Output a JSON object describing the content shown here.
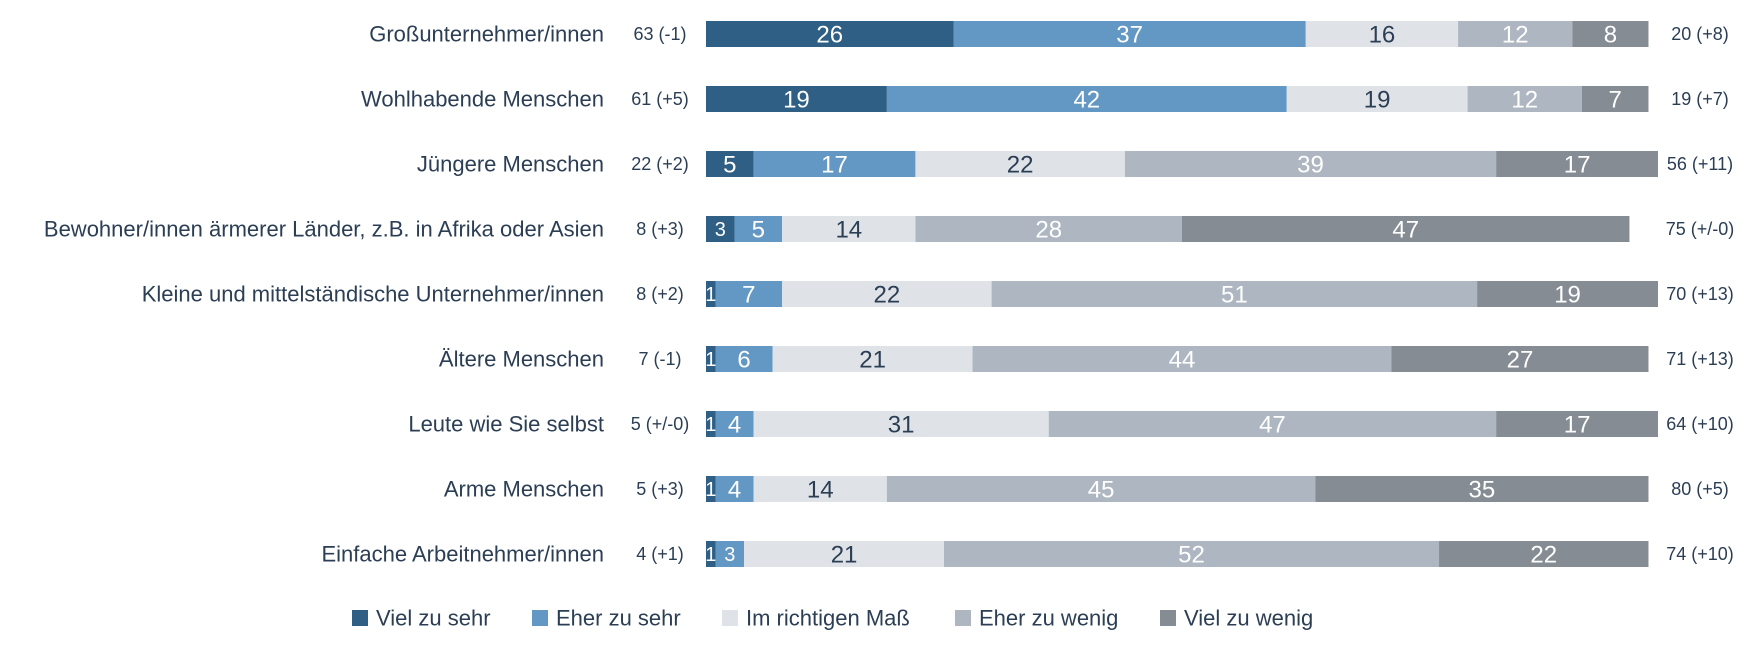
{
  "chart_data": {
    "type": "bar",
    "orientation": "horizontal",
    "stacked": true,
    "categories": [
      "Großunternehmer/innen",
      "Wohlhabende Menschen",
      "Jüngere Menschen",
      "Bewohner/innen ärmerer Länder, z.B. in Afrika oder Asien",
      "Kleine und mittelständische Unternehmer/innen",
      "Ältere Menschen",
      "Leute wie Sie selbst",
      "Arme Menschen",
      "Einfache Arbeitnehmer/innen"
    ],
    "series": [
      {
        "name": "Viel zu sehr",
        "color": "#2f5f85",
        "label_color": "#ffffff",
        "values": [
          26,
          19,
          5,
          3,
          1,
          1,
          1,
          1,
          1
        ]
      },
      {
        "name": "Eher zu sehr",
        "color": "#6398c4",
        "label_color": "#ffffff",
        "values": [
          37,
          42,
          17,
          5,
          7,
          6,
          4,
          4,
          3
        ]
      },
      {
        "name": "Im richtigen Maß",
        "color": "#dfe3e8",
        "label_color": "#2b3e54",
        "values": [
          16,
          19,
          22,
          14,
          22,
          21,
          31,
          14,
          21
        ]
      },
      {
        "name": "Eher zu wenig",
        "color": "#adb6c1",
        "label_color": "#ffffff",
        "values": [
          12,
          12,
          39,
          28,
          51,
          44,
          47,
          45,
          52
        ]
      },
      {
        "name": "Viel zu wenig",
        "color": "#858c94",
        "label_color": "#ffffff",
        "values": [
          8,
          7,
          17,
          47,
          19,
          27,
          17,
          35,
          22
        ]
      }
    ],
    "left_totals": [
      "63 (-1)",
      "61 (+5)",
      "22 (+2)",
      "8 (+3)",
      "8 (+2)",
      "7 (-1)",
      "5 (+/-0)",
      "5 (+3)",
      "4 (+1)"
    ],
    "right_totals": [
      "20 (+8)",
      "19 (+7)",
      "56 (+11)",
      "75 (+/-0)",
      "70 (+13)",
      "71 (+13)",
      "64 (+10)",
      "80 (+5)",
      "74 (+10)"
    ],
    "xlim": [
      0,
      100
    ],
    "grid": false,
    "legend_position": "bottom",
    "text_color": "#2b3e54"
  }
}
